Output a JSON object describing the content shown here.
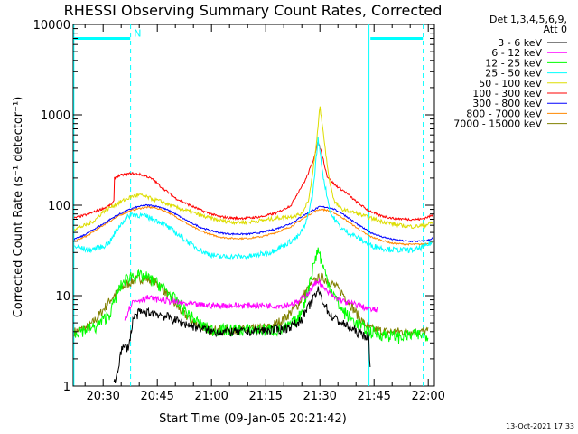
{
  "chart_data": {
    "type": "line",
    "title": "RHESSI Observing Summary Count Rates, Corrected",
    "xlabel": "Start Time (09-Jan-05 20:21:42)",
    "ylabel": "Corrected Count Rate (s⁻¹ detector⁻¹)",
    "xscale": "time (minutes since 20:00)",
    "yscale": "log",
    "xlim": [
      21.7,
      121.7
    ],
    "ylim": [
      1,
      10000
    ],
    "xticks": [
      {
        "v": 30,
        "label": "20:30"
      },
      {
        "v": 45,
        "label": "20:45"
      },
      {
        "v": 60,
        "label": "21:00"
      },
      {
        "v": 75,
        "label": "21:15"
      },
      {
        "v": 90,
        "label": "21:30"
      },
      {
        "v": 105,
        "label": "21:45"
      },
      {
        "v": 120,
        "label": "22:00"
      }
    ],
    "yticks": [
      {
        "v": 1,
        "label": "1"
      },
      {
        "v": 10,
        "label": "10"
      },
      {
        "v": 100,
        "label": "100"
      },
      {
        "v": 1000,
        "label": "1000"
      },
      {
        "v": 10000,
        "label": "10000"
      }
    ],
    "legend": {
      "placement": "right",
      "header": [
        "Det 1,3,4,5,6,9,",
        "Att 0"
      ]
    },
    "timestamp": "13-Oct-2021 17:33",
    "annotations": [
      {
        "text": "N",
        "x": 38.5,
        "y": 8000
      }
    ],
    "flags": {
      "color": "#00ffff",
      "night_lines": [
        21.9,
        37.6,
        103.6,
        118.6
      ],
      "segments": [
        {
          "x0": 22,
          "x1": 37.5,
          "y": 7000
        },
        {
          "x0": 104,
          "x1": 118.5,
          "y": 7000
        }
      ]
    },
    "series": [
      {
        "name": "3 - 6 keV",
        "color": "#000000",
        "points": [
          [
            33,
            1
          ],
          [
            34,
            1.5
          ],
          [
            35,
            2.5
          ],
          [
            36,
            2.7
          ],
          [
            37,
            2.7
          ],
          [
            37.8,
            4
          ],
          [
            38.2,
            5.5
          ],
          [
            40,
            6.5
          ],
          [
            44,
            6.5
          ],
          [
            48,
            5.8
          ],
          [
            52,
            5
          ],
          [
            56,
            4.5
          ],
          [
            60,
            4
          ],
          [
            70,
            4
          ],
          [
            80,
            4.3
          ],
          [
            84,
            5
          ],
          [
            86,
            6.5
          ],
          [
            88,
            9
          ],
          [
            89.5,
            11.5
          ],
          [
            91,
            8.5
          ],
          [
            93,
            6
          ],
          [
            96,
            5
          ],
          [
            100,
            4
          ],
          [
            103.5,
            3.5
          ],
          [
            104,
            1.3
          ]
        ]
      },
      {
        "name": "6 - 12 keV",
        "color": "#ff00ff",
        "points": [
          [
            36,
            5.5
          ],
          [
            38,
            8.5
          ],
          [
            42,
            9.5
          ],
          [
            46,
            9
          ],
          [
            50,
            8.5
          ],
          [
            54,
            8
          ],
          [
            60,
            7.8
          ],
          [
            70,
            7.8
          ],
          [
            80,
            7.8
          ],
          [
            84,
            8.5
          ],
          [
            87,
            11
          ],
          [
            89.5,
            15
          ],
          [
            91,
            12
          ],
          [
            94,
            9.5
          ],
          [
            97,
            8.5
          ],
          [
            100,
            8
          ],
          [
            104,
            7
          ],
          [
            106,
            7
          ]
        ]
      },
      {
        "name": "12 - 25 keV",
        "color": "#00ff00",
        "points": [
          [
            22,
            4
          ],
          [
            25,
            4.2
          ],
          [
            28,
            4.5
          ],
          [
            32,
            6.5
          ],
          [
            34,
            11
          ],
          [
            36,
            15
          ],
          [
            38,
            17
          ],
          [
            42,
            16
          ],
          [
            46,
            13
          ],
          [
            50,
            9
          ],
          [
            54,
            6
          ],
          [
            58,
            4.5
          ],
          [
            60,
            4.2
          ],
          [
            70,
            4.2
          ],
          [
            80,
            4.2
          ],
          [
            84,
            5.5
          ],
          [
            86,
            9
          ],
          [
            88,
            20
          ],
          [
            89.5,
            33
          ],
          [
            91,
            20
          ],
          [
            93,
            12
          ],
          [
            96,
            7
          ],
          [
            100,
            5
          ],
          [
            104,
            4
          ],
          [
            108,
            3.7
          ],
          [
            112,
            3.5
          ],
          [
            116,
            3.7
          ],
          [
            120,
            3.7
          ]
        ]
      },
      {
        "name": "25 - 50 keV",
        "color": "#00ffff",
        "points": [
          [
            22,
            35
          ],
          [
            26,
            32
          ],
          [
            30,
            35
          ],
          [
            32,
            40
          ],
          [
            34,
            55
          ],
          [
            36,
            70
          ],
          [
            38,
            80
          ],
          [
            42,
            75
          ],
          [
            46,
            65
          ],
          [
            50,
            50
          ],
          [
            54,
            38
          ],
          [
            58,
            30
          ],
          [
            62,
            27
          ],
          [
            70,
            27
          ],
          [
            76,
            30
          ],
          [
            80,
            36
          ],
          [
            84,
            45
          ],
          [
            86,
            60
          ],
          [
            88,
            130
          ],
          [
            89.5,
            550
          ],
          [
            91,
            200
          ],
          [
            93,
            80
          ],
          [
            96,
            55
          ],
          [
            100,
            45
          ],
          [
            104,
            36
          ],
          [
            108,
            33
          ],
          [
            112,
            32
          ],
          [
            116,
            32
          ],
          [
            119,
            35
          ],
          [
            121.5,
            40
          ]
        ]
      },
      {
        "name": "50 - 100 keV",
        "color": "#dddd00",
        "points": [
          [
            22,
            55
          ],
          [
            24,
            58
          ],
          [
            26,
            62
          ],
          [
            28,
            70
          ],
          [
            30,
            85
          ],
          [
            32,
            95
          ],
          [
            34,
            105
          ],
          [
            36,
            115
          ],
          [
            38,
            125
          ],
          [
            40,
            130
          ],
          [
            43,
            120
          ],
          [
            46,
            110
          ],
          [
            50,
            95
          ],
          [
            54,
            85
          ],
          [
            58,
            75
          ],
          [
            62,
            68
          ],
          [
            66,
            65
          ],
          [
            70,
            65
          ],
          [
            74,
            68
          ],
          [
            78,
            72
          ],
          [
            82,
            75
          ],
          [
            85,
            80
          ],
          [
            87,
            120
          ],
          [
            89,
            450
          ],
          [
            90,
            1250
          ],
          [
            91,
            600
          ],
          [
            92.5,
            200
          ],
          [
            94,
            110
          ],
          [
            96,
            90
          ],
          [
            100,
            82
          ],
          [
            104,
            72
          ],
          [
            108,
            65
          ],
          [
            112,
            60
          ],
          [
            116,
            58
          ],
          [
            119,
            60
          ],
          [
            121.5,
            65
          ]
        ]
      },
      {
        "name": "100 - 300 keV",
        "color": "#ff0000",
        "points": [
          [
            22,
            72
          ],
          [
            24,
            76
          ],
          [
            26,
            80
          ],
          [
            28,
            86
          ],
          [
            30,
            92
          ],
          [
            32,
            100
          ],
          [
            33,
            110
          ],
          [
            33.1,
            200
          ],
          [
            34,
            210
          ],
          [
            36,
            220
          ],
          [
            38,
            225
          ],
          [
            40,
            220
          ],
          [
            42,
            210
          ],
          [
            44,
            190
          ],
          [
            46,
            160
          ],
          [
            50,
            120
          ],
          [
            54,
            100
          ],
          [
            58,
            85
          ],
          [
            62,
            75
          ],
          [
            66,
            72
          ],
          [
            70,
            72
          ],
          [
            74,
            75
          ],
          [
            78,
            82
          ],
          [
            82,
            100
          ],
          [
            84,
            140
          ],
          [
            86,
            190
          ],
          [
            88,
            300
          ],
          [
            89.5,
            500
          ],
          [
            90.5,
            380
          ],
          [
            92,
            210
          ],
          [
            94,
            170
          ],
          [
            97,
            140
          ],
          [
            100,
            110
          ],
          [
            103,
            90
          ],
          [
            106,
            78
          ],
          [
            110,
            72
          ],
          [
            114,
            70
          ],
          [
            118,
            70
          ],
          [
            121.5,
            78
          ]
        ]
      },
      {
        "name": "300 - 800 keV",
        "color": "#0000ff",
        "points": [
          [
            22,
            42
          ],
          [
            24,
            45
          ],
          [
            26,
            50
          ],
          [
            28,
            56
          ],
          [
            30,
            62
          ],
          [
            32,
            70
          ],
          [
            34,
            78
          ],
          [
            36,
            85
          ],
          [
            38,
            92
          ],
          [
            40,
            97
          ],
          [
            42,
            100
          ],
          [
            44,
            99
          ],
          [
            46,
            95
          ],
          [
            48,
            88
          ],
          [
            50,
            80
          ],
          [
            52,
            72
          ],
          [
            54,
            65
          ],
          [
            57,
            57
          ],
          [
            60,
            52
          ],
          [
            63,
            49
          ],
          [
            66,
            48
          ],
          [
            70,
            48
          ],
          [
            74,
            50
          ],
          [
            78,
            55
          ],
          [
            82,
            63
          ],
          [
            85,
            75
          ],
          [
            88,
            88
          ],
          [
            90,
            96
          ],
          [
            92,
            95
          ],
          [
            94,
            90
          ],
          [
            96,
            82
          ],
          [
            98,
            72
          ],
          [
            100,
            63
          ],
          [
            102,
            56
          ],
          [
            104,
            50
          ],
          [
            107,
            45
          ],
          [
            110,
            42
          ],
          [
            114,
            40
          ],
          [
            118,
            40
          ],
          [
            120,
            41
          ],
          [
            121.5,
            44
          ]
        ]
      },
      {
        "name": "800 - 7000 keV",
        "color": "#ff8800",
        "points": [
          [
            22,
            40
          ],
          [
            24,
            43
          ],
          [
            26,
            47
          ],
          [
            28,
            53
          ],
          [
            30,
            60
          ],
          [
            32,
            67
          ],
          [
            34,
            75
          ],
          [
            36,
            82
          ],
          [
            38,
            88
          ],
          [
            40,
            92
          ],
          [
            42,
            95
          ],
          [
            44,
            94
          ],
          [
            46,
            90
          ],
          [
            48,
            83
          ],
          [
            50,
            75
          ],
          [
            52,
            67
          ],
          [
            54,
            60
          ],
          [
            57,
            52
          ],
          [
            60,
            47
          ],
          [
            63,
            44
          ],
          [
            66,
            43
          ],
          [
            70,
            43
          ],
          [
            74,
            45
          ],
          [
            78,
            50
          ],
          [
            82,
            58
          ],
          [
            85,
            70
          ],
          [
            88,
            83
          ],
          [
            90,
            90
          ],
          [
            92,
            88
          ],
          [
            94,
            82
          ],
          [
            96,
            74
          ],
          [
            98,
            65
          ],
          [
            100,
            57
          ],
          [
            102,
            50
          ],
          [
            104,
            45
          ],
          [
            107,
            41
          ],
          [
            110,
            38
          ],
          [
            114,
            37
          ],
          [
            118,
            37
          ],
          [
            120,
            38
          ],
          [
            121.5,
            40
          ]
        ]
      },
      {
        "name": "7000 - 15000 keV",
        "color": "#808000",
        "points": [
          [
            22,
            4
          ],
          [
            26,
            4.5
          ],
          [
            28,
            5.5
          ],
          [
            30,
            7
          ],
          [
            32,
            9
          ],
          [
            34,
            11
          ],
          [
            36,
            13
          ],
          [
            38,
            14.5
          ],
          [
            40,
            15.5
          ],
          [
            42,
            15.5
          ],
          [
            44,
            14.5
          ],
          [
            46,
            12.5
          ],
          [
            48,
            10
          ],
          [
            50,
            8
          ],
          [
            52,
            6.5
          ],
          [
            55,
            5
          ],
          [
            58,
            4.5
          ],
          [
            60,
            4.2
          ],
          [
            70,
            4.2
          ],
          [
            76,
            4.5
          ],
          [
            80,
            5.5
          ],
          [
            84,
            8
          ],
          [
            86,
            11
          ],
          [
            88,
            14
          ],
          [
            90,
            16
          ],
          [
            92,
            15
          ],
          [
            94,
            13
          ],
          [
            96,
            11
          ],
          [
            98,
            8.5
          ],
          [
            100,
            6.5
          ],
          [
            102,
            5
          ],
          [
            104,
            4.3
          ],
          [
            108,
            4
          ],
          [
            112,
            4
          ],
          [
            116,
            4
          ],
          [
            120,
            4
          ]
        ]
      }
    ]
  }
}
